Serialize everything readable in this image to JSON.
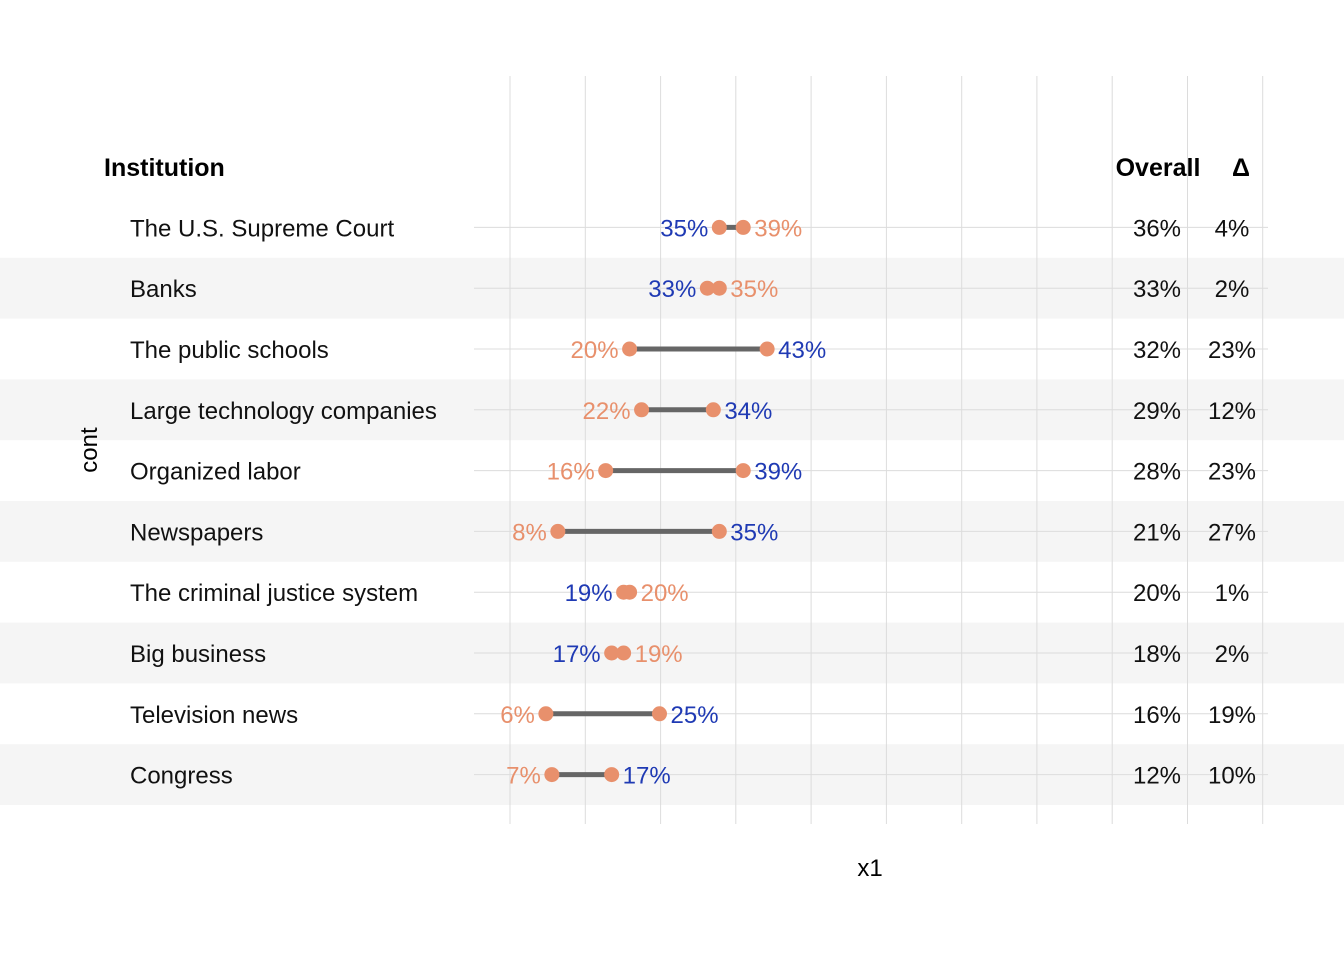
{
  "chart_data": {
    "type": "dumbbell",
    "ylabel": "cont",
    "xlabel": "x1",
    "headers": {
      "institution": "Institution",
      "overall": "Overall",
      "delta": "Δ"
    },
    "colors": {
      "point": "#E8906C",
      "connector": "#666666",
      "higher_label": "#1F3AB4",
      "lower_label": "#E8906C",
      "band": "#F5F5F5",
      "grid": "#DCDCDC"
    },
    "rows": [
      {
        "institution": "The U.S. Supreme Court",
        "label_a": "35%",
        "label_b": "39%",
        "a": 35,
        "b": 39,
        "higher": "a",
        "overall": "36%",
        "delta": "4%"
      },
      {
        "institution": "Banks",
        "label_a": "33%",
        "label_b": "35%",
        "a": 33,
        "b": 35,
        "higher": "a",
        "overall": "33%",
        "delta": "2%"
      },
      {
        "institution": "The public schools",
        "label_a": "20%",
        "label_b": "43%",
        "a": 20,
        "b": 43,
        "higher": "b",
        "overall": "32%",
        "delta": "23%"
      },
      {
        "institution": "Large technology companies",
        "label_a": "22%",
        "label_b": "34%",
        "a": 22,
        "b": 34,
        "higher": "b",
        "overall": "29%",
        "delta": "12%"
      },
      {
        "institution": "Organized labor",
        "label_a": "16%",
        "label_b": "39%",
        "a": 16,
        "b": 39,
        "higher": "b",
        "overall": "28%",
        "delta": "23%"
      },
      {
        "institution": "Newspapers",
        "label_a": "8%",
        "label_b": "35%",
        "a": 8,
        "b": 35,
        "higher": "b",
        "overall": "21%",
        "delta": "27%"
      },
      {
        "institution": "The criminal justice system",
        "label_a": "19%",
        "label_b": "20%",
        "a": 19,
        "b": 20,
        "higher": "a",
        "overall": "20%",
        "delta": "1%"
      },
      {
        "institution": "Big business",
        "label_a": "17%",
        "label_b": "19%",
        "a": 17,
        "b": 19,
        "higher": "a",
        "overall": "18%",
        "delta": "2%"
      },
      {
        "institution": "Television news",
        "label_a": "6%",
        "label_b": "25%",
        "a": 6,
        "b": 25,
        "higher": "b",
        "overall": "16%",
        "delta": "19%"
      },
      {
        "institution": "Congress",
        "label_a": "7%",
        "label_b": "17%",
        "a": 7,
        "b": 17,
        "higher": "b",
        "overall": "12%",
        "delta": "10%"
      }
    ]
  }
}
